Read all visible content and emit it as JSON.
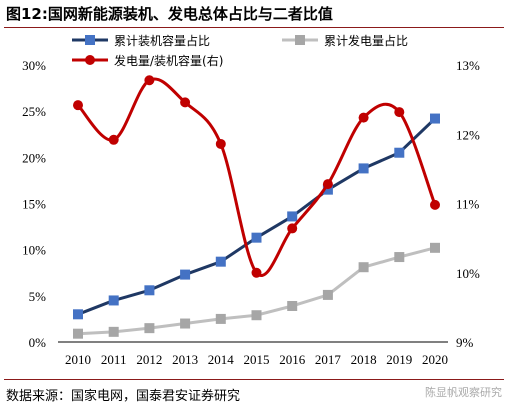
{
  "header": {
    "title": "图12:国网新能源装机、发电总体占比与二者比值"
  },
  "footer": {
    "source": "数据来源：国家电网，国泰君安证券研究",
    "watermark": "陈显帆观察研究"
  },
  "colors": {
    "installed": "#1f3864",
    "installed_marker": "#4472c4",
    "generation": "#bfbfbf",
    "generation_marker": "#a6a6a6",
    "ratio": "#c00000",
    "rule": "#8b1a1a"
  },
  "chart_data": {
    "type": "line",
    "x": [
      "2010",
      "2011",
      "2012",
      "2013",
      "2014",
      "2015",
      "2016",
      "2017",
      "2018",
      "2019",
      "2020"
    ],
    "ylim": [
      0,
      30
    ],
    "y_ticks": [
      "0%",
      "5%",
      "10%",
      "15%",
      "20%",
      "25%",
      "30%"
    ],
    "y2lim": [
      9,
      13
    ],
    "y2_ticks": [
      "9%",
      "10%",
      "11%",
      "12%",
      "13%"
    ],
    "legend_position": "top",
    "series": [
      {
        "name": "累计装机容量占比",
        "axis": "left",
        "marker": "square",
        "values": [
          3.0,
          4.5,
          5.6,
          7.3,
          8.7,
          11.3,
          13.6,
          16.5,
          18.8,
          20.5,
          24.2
        ]
      },
      {
        "name": "累计发电量占比",
        "axis": "left",
        "marker": "square",
        "values": [
          0.9,
          1.1,
          1.5,
          2.0,
          2.5,
          2.9,
          3.9,
          5.1,
          8.1,
          9.2,
          10.2
        ]
      },
      {
        "name": "发电量/装机容量(右)",
        "axis": "right",
        "marker": "circle",
        "smooth": true,
        "values": [
          12.42,
          11.92,
          12.78,
          12.46,
          11.86,
          10.0,
          10.64,
          11.28,
          12.24,
          12.32,
          10.98
        ]
      }
    ]
  }
}
